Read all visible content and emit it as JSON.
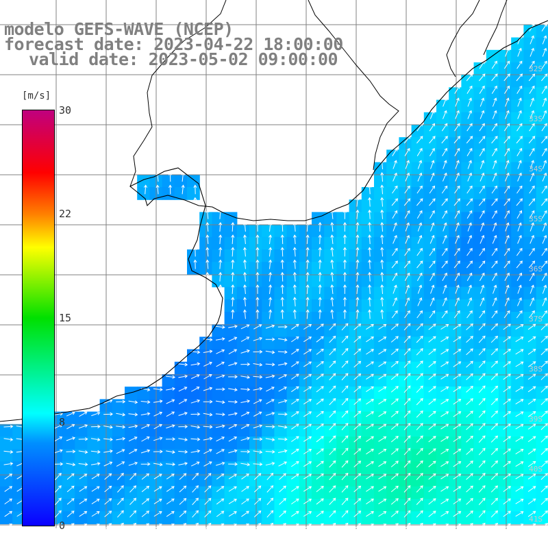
{
  "header": {
    "title": "modelo GEFS-WAVE (NCEP)",
    "forecast": "forecast date: 2023-04-22 18:00:00",
    "valid": "valid date: 2023-05-02 09:00:00"
  },
  "colorbar": {
    "unit": "[m/s]",
    "ticks": [
      "30",
      "22",
      "15",
      "8",
      "0"
    ],
    "colors": [
      "#0a00ff",
      "#0090ff",
      "#00ffff",
      "#00e000",
      "#ffff00",
      "#ff8000",
      "#ff0000",
      "#c0007f"
    ]
  },
  "map": {
    "land_color": "#ffffff",
    "grid_color": "#808080",
    "arrow_color": "#ffffff",
    "lat_labels": [
      "32S",
      "33S",
      "34S",
      "35S",
      "36S",
      "37S",
      "38S",
      "39S",
      "40S",
      "41S"
    ]
  }
}
